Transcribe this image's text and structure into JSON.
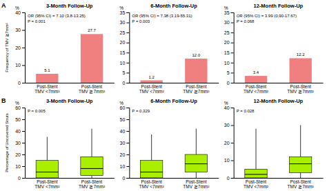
{
  "chart_data": [
    {
      "type": "bar",
      "title": "3-Month Follow-Up",
      "panel_label": "A",
      "ylabel": "Frequency of TMV ≧7mm²",
      "y_unit": "%",
      "annotations": [
        "OR (95% CI) = 7.10 (3.8-13.25)",
        "P = 0.001"
      ],
      "categories": [
        "Post-Stent\nTMV <7mm²",
        "Post-Stent\nTMV ≧7mm²"
      ],
      "values": [
        5.1,
        27.7
      ],
      "value_labels": [
        "5.1",
        "27.7"
      ],
      "data_labels": true,
      "color": "#F08080",
      "ylim": [
        0,
        40
      ],
      "yticks": [
        0,
        10,
        20,
        30,
        40
      ]
    },
    {
      "type": "bar",
      "title": "6-Month Follow-Up",
      "y_unit": "%",
      "annotations": [
        "OR (95% CI) = 7.38 (3.19-55.31)",
        "P = 0.003"
      ],
      "categories": [
        "Post-Stent\nTMV <7mm²",
        "Post-Stent\nTMV ≧7mm²"
      ],
      "values": [
        1.2,
        12.0
      ],
      "value_labels": [
        "1.2",
        "12.0"
      ],
      "data_labels": true,
      "color": "#F08080",
      "ylim": [
        0,
        35
      ],
      "yticks": [
        0,
        5,
        10,
        15,
        20,
        25,
        30,
        35
      ]
    },
    {
      "type": "bar",
      "title": "12-Month Follow-Up",
      "y_unit": "%",
      "annotations": [
        "OR (95% CI) = 3.99 (0.90-17.67)",
        "P = 0.068"
      ],
      "categories": [
        "Post-Stent\nTMV <7mm²",
        "Post-Stent\nTMV ≧7mm²"
      ],
      "values": [
        3.4,
        12.2
      ],
      "value_labels": [
        "3.4",
        "12.2"
      ],
      "data_labels": true,
      "color": "#F08080",
      "ylim": [
        0,
        35
      ],
      "yticks": [
        0,
        5,
        10,
        15,
        20,
        25,
        30,
        35
      ]
    },
    {
      "type": "box",
      "title": "3-Month Follow-Up",
      "panel_label": "B",
      "ylabel": "Percentage of Uncovered Struts",
      "y_unit": "%",
      "annotations": [
        "P = 0.005"
      ],
      "categories": [
        "Post-Stent\nTMV <7mm²",
        "Post-Stent\nTMV ≧7mm²"
      ],
      "boxes": [
        {
          "q1": 0,
          "median": 5,
          "q3": 15,
          "whislo": 0,
          "whishi": 35
        },
        {
          "q1": 2,
          "median": 8,
          "q3": 18,
          "whislo": 0,
          "whishi": 42
        }
      ],
      "color": "#AAEE00",
      "ylim": [
        0,
        60
      ],
      "yticks": [
        0,
        10,
        20,
        30,
        40,
        50,
        60
      ]
    },
    {
      "type": "box",
      "title": "6-Month Follow-Up",
      "y_unit": "%",
      "annotations": [
        "P = 0.329"
      ],
      "categories": [
        "Post-Stent\nTMV <7mm²",
        "Post-Stent\nTMV ≧7mm²"
      ],
      "boxes": [
        {
          "q1": 0,
          "median": 5,
          "q3": 15,
          "whislo": 0,
          "whishi": 37
        },
        {
          "q1": 5,
          "median": 12,
          "q3": 20,
          "whislo": 0,
          "whishi": 42
        }
      ],
      "color": "#AAEE00",
      "ylim": [
        0,
        60
      ],
      "yticks": [
        0,
        10,
        20,
        30,
        40,
        50,
        60
      ]
    },
    {
      "type": "box",
      "title": "12-Month Follow-Up",
      "y_unit": "%",
      "annotations": [
        "P = 0.028"
      ],
      "categories": [
        "Post-Stent\nTMV <7mm²",
        "Post-Stent\nTMV ≧7mm²"
      ],
      "boxes": [
        {
          "q1": 0,
          "median": 2,
          "q3": 5,
          "whislo": 0,
          "whishi": 28
        },
        {
          "q1": 3,
          "median": 8,
          "q3": 12,
          "whislo": 0,
          "whishi": 30
        }
      ],
      "color": "#AAEE00",
      "ylim": [
        0,
        40
      ],
      "yticks": [
        0,
        10,
        20,
        30,
        40
      ]
    }
  ]
}
